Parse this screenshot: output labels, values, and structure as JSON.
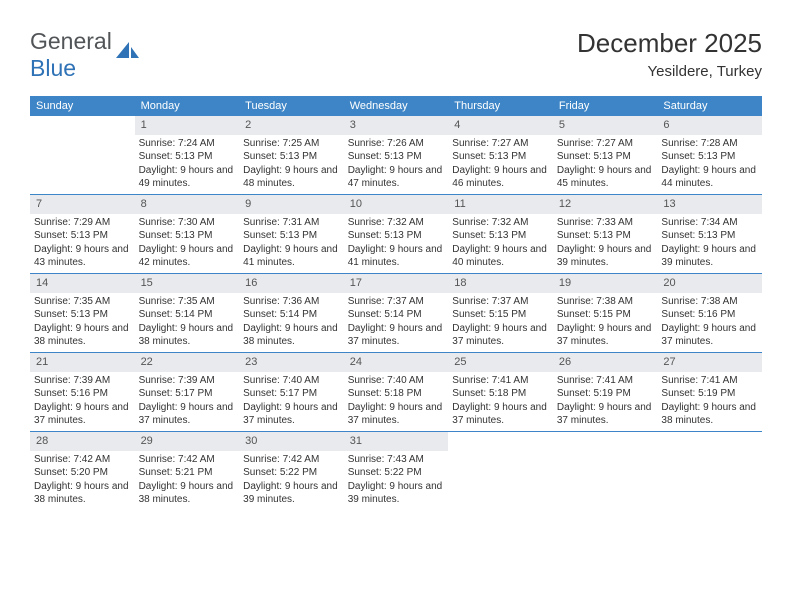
{
  "logo": {
    "textLeft": "General",
    "textRight": "Blue"
  },
  "title": "December 2025",
  "location": "Yesildere, Turkey",
  "colors": {
    "headerBg": "#3d85c6",
    "dayNumBg": "#e8eaed",
    "weekBorder": "#3d85c6",
    "logoGray": "#525558",
    "logoBlue": "#2f73b6"
  },
  "dayNames": [
    "Sunday",
    "Monday",
    "Tuesday",
    "Wednesday",
    "Thursday",
    "Friday",
    "Saturday"
  ],
  "weeks": [
    [
      null,
      {
        "n": "1",
        "sr": "7:24 AM",
        "ss": "5:13 PM",
        "dl": "9 hours and 49 minutes."
      },
      {
        "n": "2",
        "sr": "7:25 AM",
        "ss": "5:13 PM",
        "dl": "9 hours and 48 minutes."
      },
      {
        "n": "3",
        "sr": "7:26 AM",
        "ss": "5:13 PM",
        "dl": "9 hours and 47 minutes."
      },
      {
        "n": "4",
        "sr": "7:27 AM",
        "ss": "5:13 PM",
        "dl": "9 hours and 46 minutes."
      },
      {
        "n": "5",
        "sr": "7:27 AM",
        "ss": "5:13 PM",
        "dl": "9 hours and 45 minutes."
      },
      {
        "n": "6",
        "sr": "7:28 AM",
        "ss": "5:13 PM",
        "dl": "9 hours and 44 minutes."
      }
    ],
    [
      {
        "n": "7",
        "sr": "7:29 AM",
        "ss": "5:13 PM",
        "dl": "9 hours and 43 minutes."
      },
      {
        "n": "8",
        "sr": "7:30 AM",
        "ss": "5:13 PM",
        "dl": "9 hours and 42 minutes."
      },
      {
        "n": "9",
        "sr": "7:31 AM",
        "ss": "5:13 PM",
        "dl": "9 hours and 41 minutes."
      },
      {
        "n": "10",
        "sr": "7:32 AM",
        "ss": "5:13 PM",
        "dl": "9 hours and 41 minutes."
      },
      {
        "n": "11",
        "sr": "7:32 AM",
        "ss": "5:13 PM",
        "dl": "9 hours and 40 minutes."
      },
      {
        "n": "12",
        "sr": "7:33 AM",
        "ss": "5:13 PM",
        "dl": "9 hours and 39 minutes."
      },
      {
        "n": "13",
        "sr": "7:34 AM",
        "ss": "5:13 PM",
        "dl": "9 hours and 39 minutes."
      }
    ],
    [
      {
        "n": "14",
        "sr": "7:35 AM",
        "ss": "5:13 PM",
        "dl": "9 hours and 38 minutes."
      },
      {
        "n": "15",
        "sr": "7:35 AM",
        "ss": "5:14 PM",
        "dl": "9 hours and 38 minutes."
      },
      {
        "n": "16",
        "sr": "7:36 AM",
        "ss": "5:14 PM",
        "dl": "9 hours and 38 minutes."
      },
      {
        "n": "17",
        "sr": "7:37 AM",
        "ss": "5:14 PM",
        "dl": "9 hours and 37 minutes."
      },
      {
        "n": "18",
        "sr": "7:37 AM",
        "ss": "5:15 PM",
        "dl": "9 hours and 37 minutes."
      },
      {
        "n": "19",
        "sr": "7:38 AM",
        "ss": "5:15 PM",
        "dl": "9 hours and 37 minutes."
      },
      {
        "n": "20",
        "sr": "7:38 AM",
        "ss": "5:16 PM",
        "dl": "9 hours and 37 minutes."
      }
    ],
    [
      {
        "n": "21",
        "sr": "7:39 AM",
        "ss": "5:16 PM",
        "dl": "9 hours and 37 minutes."
      },
      {
        "n": "22",
        "sr": "7:39 AM",
        "ss": "5:17 PM",
        "dl": "9 hours and 37 minutes."
      },
      {
        "n": "23",
        "sr": "7:40 AM",
        "ss": "5:17 PM",
        "dl": "9 hours and 37 minutes."
      },
      {
        "n": "24",
        "sr": "7:40 AM",
        "ss": "5:18 PM",
        "dl": "9 hours and 37 minutes."
      },
      {
        "n": "25",
        "sr": "7:41 AM",
        "ss": "5:18 PM",
        "dl": "9 hours and 37 minutes."
      },
      {
        "n": "26",
        "sr": "7:41 AM",
        "ss": "5:19 PM",
        "dl": "9 hours and 37 minutes."
      },
      {
        "n": "27",
        "sr": "7:41 AM",
        "ss": "5:19 PM",
        "dl": "9 hours and 38 minutes."
      }
    ],
    [
      {
        "n": "28",
        "sr": "7:42 AM",
        "ss": "5:20 PM",
        "dl": "9 hours and 38 minutes."
      },
      {
        "n": "29",
        "sr": "7:42 AM",
        "ss": "5:21 PM",
        "dl": "9 hours and 38 minutes."
      },
      {
        "n": "30",
        "sr": "7:42 AM",
        "ss": "5:22 PM",
        "dl": "9 hours and 39 minutes."
      },
      {
        "n": "31",
        "sr": "7:43 AM",
        "ss": "5:22 PM",
        "dl": "9 hours and 39 minutes."
      },
      null,
      null,
      null
    ]
  ],
  "labels": {
    "sunrise": "Sunrise:",
    "sunset": "Sunset:",
    "daylight": "Daylight:"
  }
}
